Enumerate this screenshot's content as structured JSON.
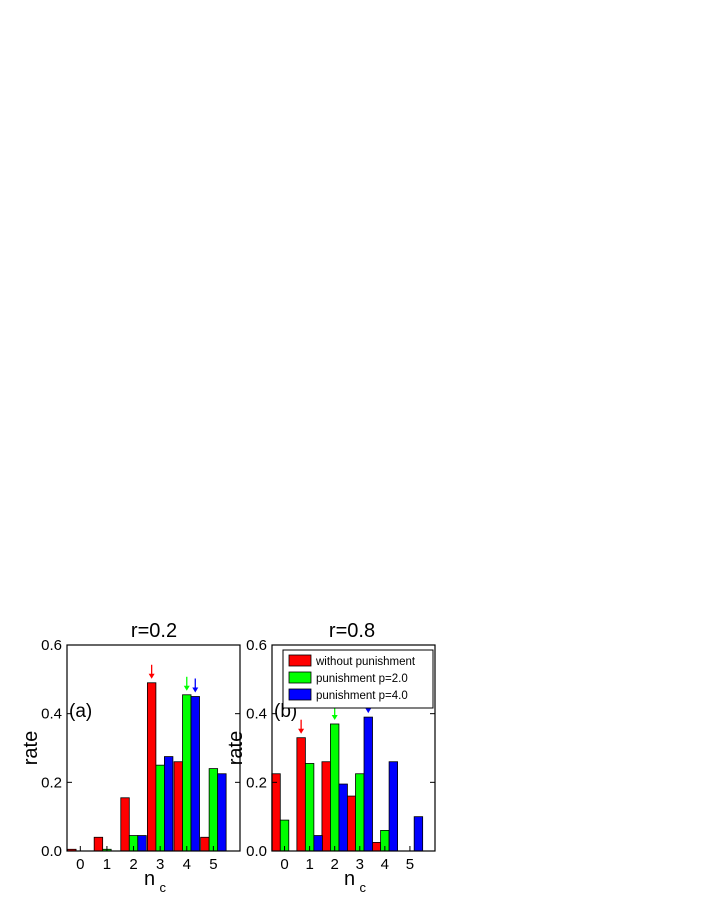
{
  "chart_data": [
    {
      "type": "bar",
      "title": "r=0.2",
      "panel_label": "(a)",
      "xlabel_main": "n",
      "xlabel_sub": "c",
      "ylabel": "rate",
      "categories": [
        "0",
        "1",
        "2",
        "3",
        "4",
        "5"
      ],
      "ylim": [
        0,
        0.6
      ],
      "yticks": [
        "0.0",
        "0.2",
        "0.4",
        "0.6"
      ],
      "series": [
        {
          "color": "#ff0000",
          "values": [
            0.005,
            0.04,
            0.155,
            0.49,
            0.26,
            0.04
          ]
        },
        {
          "color": "#00ff00",
          "values": [
            0.0,
            0.005,
            0.045,
            0.25,
            0.455,
            0.24
          ]
        },
        {
          "color": "#0000ff",
          "values": [
            0.0,
            0.0,
            0.045,
            0.275,
            0.45,
            0.225
          ]
        }
      ],
      "arrows": [
        {
          "series": 0,
          "category": "3"
        },
        {
          "series": 1,
          "category": "4"
        },
        {
          "series": 2,
          "category": "4"
        }
      ]
    },
    {
      "type": "bar",
      "title": "r=0.8",
      "panel_label": "(b)",
      "xlabel_main": "n",
      "xlabel_sub": "c",
      "ylabel": "rate",
      "categories": [
        "0",
        "1",
        "2",
        "3",
        "4",
        "5"
      ],
      "ylim": [
        0,
        0.6
      ],
      "yticks": [
        "0.0",
        "0.2",
        "0.4",
        "0.6"
      ],
      "series": [
        {
          "name": "without punishment",
          "color": "#ff0000",
          "values": [
            0.225,
            0.33,
            0.26,
            0.16,
            0.025,
            0.0
          ]
        },
        {
          "name": "punishment p=2.0",
          "color": "#00ff00",
          "values": [
            0.09,
            0.255,
            0.37,
            0.225,
            0.06,
            0.0
          ]
        },
        {
          "name": "punishment p=4.0",
          "color": "#0000ff",
          "values": [
            0.0,
            0.045,
            0.195,
            0.39,
            0.26,
            0.1
          ]
        }
      ],
      "legend_position": "top-right",
      "arrows": [
        {
          "series": 0,
          "category": "1"
        },
        {
          "series": 1,
          "category": "2"
        },
        {
          "series": 2,
          "category": "3"
        }
      ]
    }
  ]
}
